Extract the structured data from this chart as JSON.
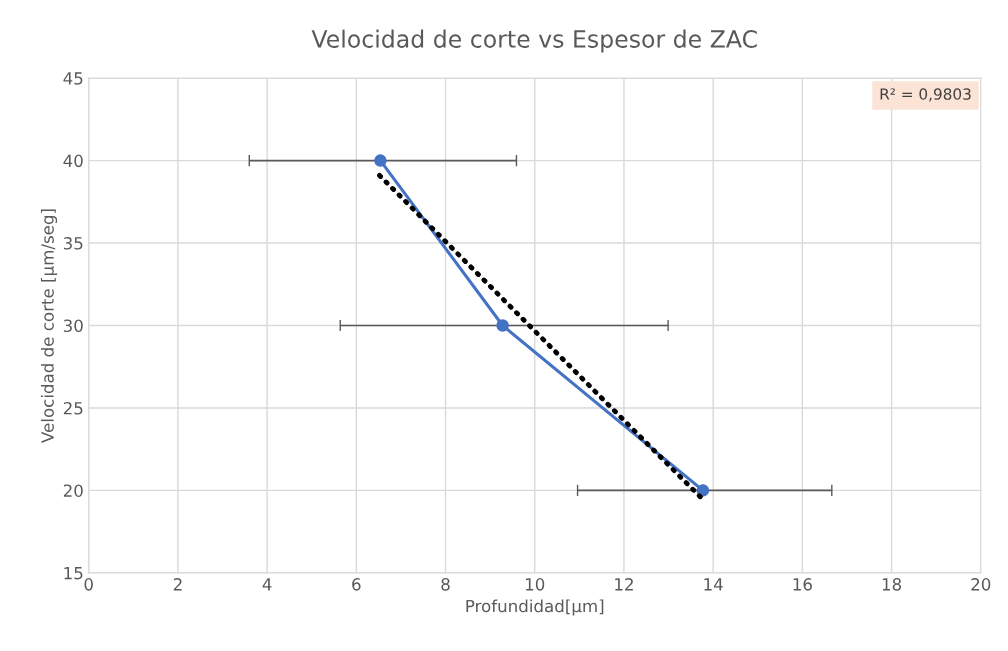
{
  "chart_data": {
    "type": "line",
    "title": "Velocidad de corte vs Espesor de ZAC",
    "xlabel": "Profundidad[µm]",
    "ylabel": "Velocidad de corte [µm/seg]",
    "xlim": [
      0,
      20
    ],
    "xticks": [
      0,
      2,
      4,
      6,
      8,
      10,
      12,
      14,
      16,
      18,
      20
    ],
    "ylim": [
      15,
      45
    ],
    "yticks": [
      15,
      20,
      25,
      30,
      35,
      40,
      45
    ],
    "grid": true,
    "legend": false,
    "annotations": [
      "R² = 0,9803"
    ],
    "series": [
      {
        "color": "#4472c4",
        "x": [
          6.54,
          9.28,
          13.77
        ],
        "values": [
          40,
          30,
          20
        ],
        "marker": "circle",
        "line_style": "solid",
        "xerrors": [
          [
            3.6,
            9.59
          ],
          [
            5.64,
            12.99
          ],
          [
            10.96,
            16.66
          ]
        ]
      },
      {
        "color": "#000000",
        "x": [
          6.52,
          13.79
        ],
        "values": [
          39.1,
          19.4
        ],
        "marker": "none",
        "line_style": "dotted"
      }
    ]
  }
}
